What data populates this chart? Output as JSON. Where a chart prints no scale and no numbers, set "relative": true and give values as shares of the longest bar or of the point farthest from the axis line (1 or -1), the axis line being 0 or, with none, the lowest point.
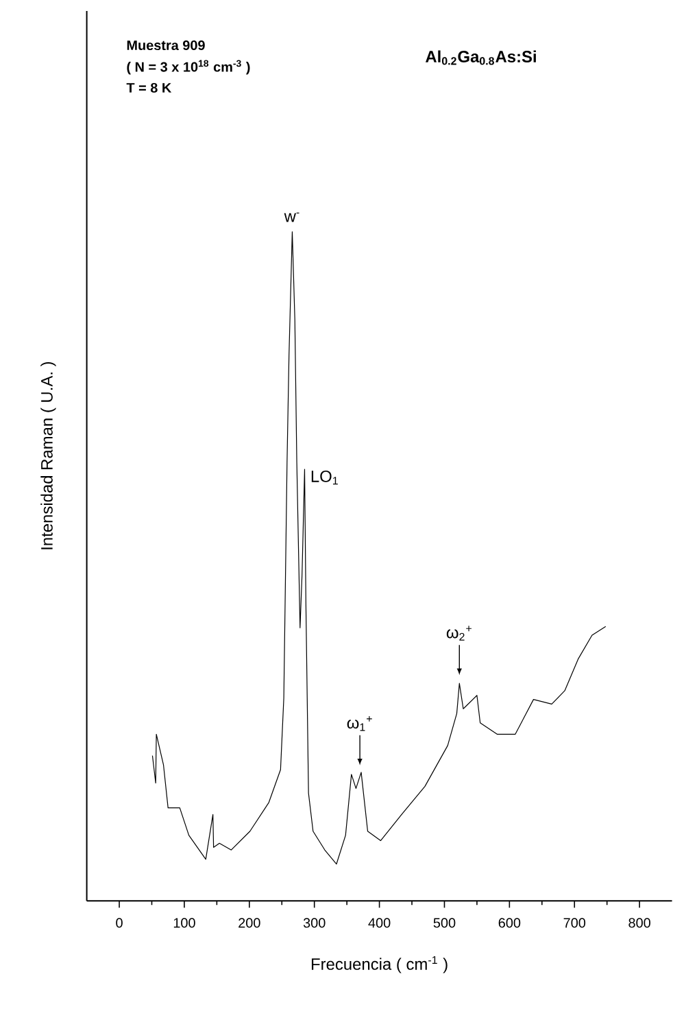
{
  "chart_data": {
    "type": "line",
    "relative": true,
    "marker": "none",
    "xlabel": "Frecuencia ( cm$^{-1}$ )",
    "ylabel": "Intensidad Raman ( U.A. )",
    "xlim": [
      -50,
      850
    ],
    "xticks": [
      0,
      100,
      200,
      300,
      400,
      500,
      600,
      700,
      800
    ],
    "x": [
      51,
      56,
      57,
      68,
      75,
      93,
      107,
      133,
      144,
      145,
      154,
      172,
      201,
      230,
      248,
      253,
      258,
      261,
      266,
      270,
      273,
      278,
      281,
      285,
      287,
      291,
      298,
      316,
      334,
      348,
      357,
      364,
      372,
      382,
      402,
      435,
      470,
      505,
      519,
      523,
      529,
      550,
      555,
      581,
      609,
      637,
      665,
      685,
      706,
      727,
      748
    ],
    "series": [
      {
        "color": "#000000",
        "values": [
          0.217,
          0.176,
          0.249,
          0.203,
          0.139,
          0.139,
          0.098,
          0.062,
          0.129,
          0.08,
          0.086,
          0.076,
          0.104,
          0.147,
          0.196,
          0.303,
          0.655,
          0.815,
          1.0,
          0.868,
          0.655,
          0.408,
          0.486,
          0.645,
          0.444,
          0.161,
          0.104,
          0.076,
          0.055,
          0.098,
          0.189,
          0.168,
          0.192,
          0.104,
          0.09,
          0.13,
          0.171,
          0.232,
          0.28,
          0.325,
          0.287,
          0.307,
          0.266,
          0.249,
          0.249,
          0.301,
          0.294,
          0.314,
          0.362,
          0.397,
          0.41
        ]
      }
    ],
    "annotations": [
      {
        "text": "w$^{-}$",
        "x": 266,
        "y": 1.0
      },
      {
        "text": "LO$_{1}$",
        "x": 285,
        "y": 0.645
      },
      {
        "text": "ω$_{1}$$^{+}$",
        "x": 370,
        "y": 0.19
      },
      {
        "text": "ω$_{2}$$^{+}$",
        "x": 523,
        "y": 0.325
      },
      "Muestra 909",
      "( N = 3 x 10$^{18}$ cm$^{-3}$ )",
      "T = 8 K",
      "Al$_{0.2}$Ga$_{0.8}$As:Si"
    ]
  }
}
